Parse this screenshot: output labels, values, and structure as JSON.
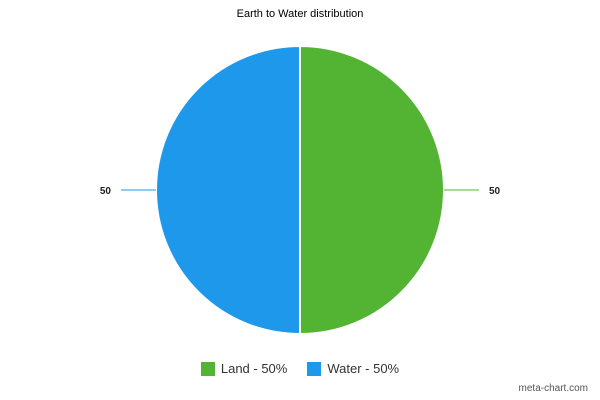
{
  "chart_data": {
    "type": "pie",
    "title": "Earth to Water distribution",
    "slices": [
      {
        "name": "Land",
        "value": 50,
        "color": "#52b432",
        "label": "50",
        "legend": "Land - 50%"
      },
      {
        "name": "Water",
        "value": 50,
        "color": "#1e98ea",
        "label": "50",
        "legend": "Water - 50%"
      }
    ],
    "legend_position": "bottom"
  },
  "credit": "meta-chart.com"
}
